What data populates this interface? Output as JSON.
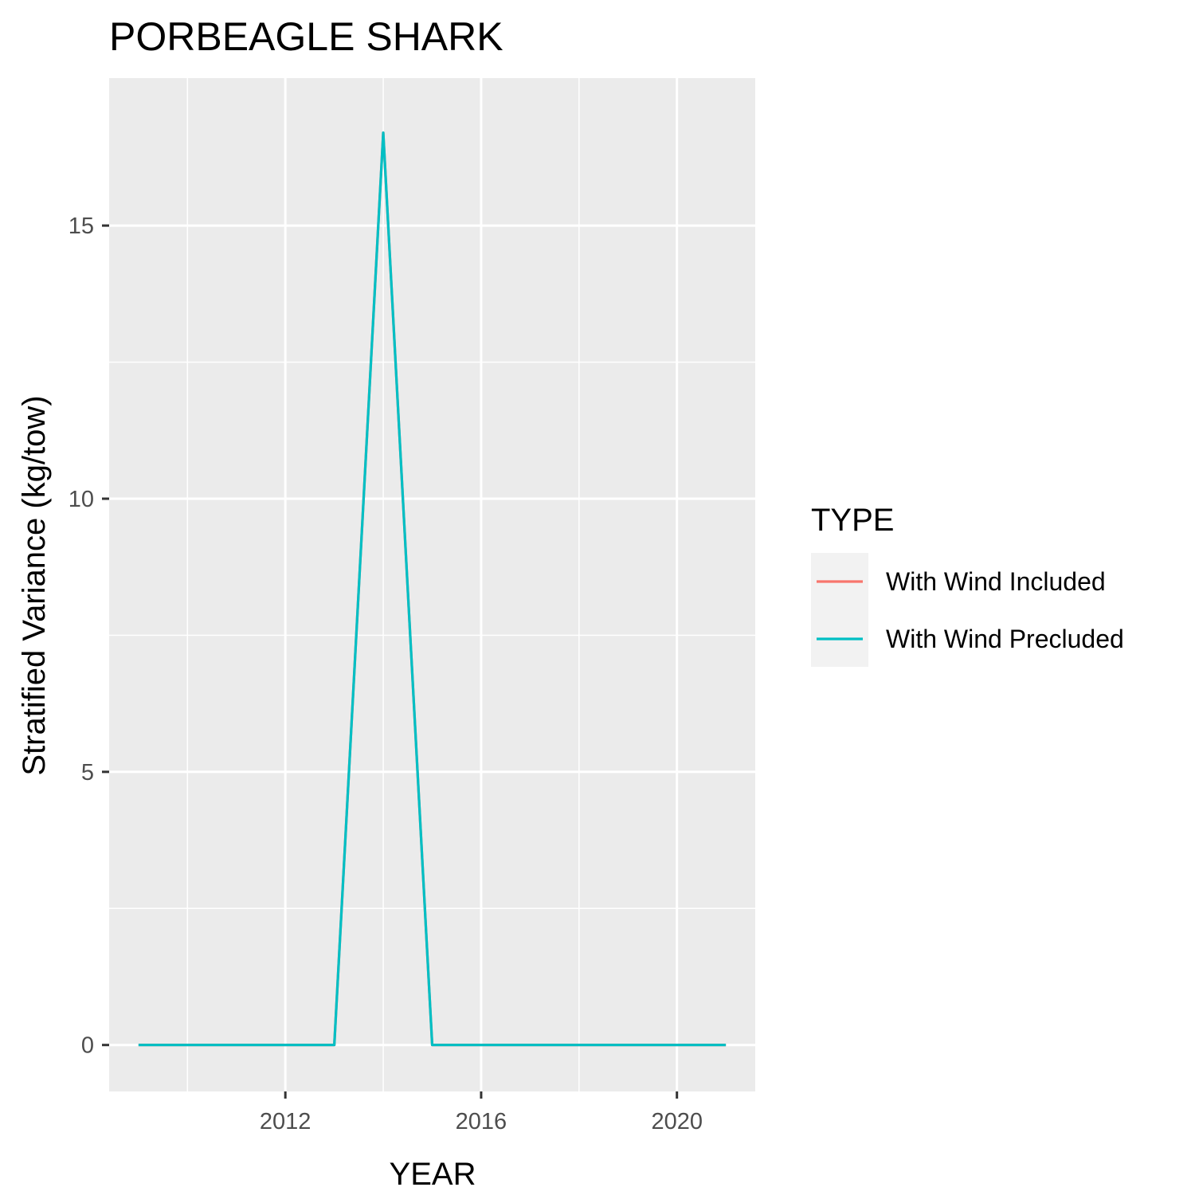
{
  "chart_data": {
    "type": "line",
    "title": "PORBEAGLE SHARK",
    "xlabel": "YEAR",
    "ylabel": "Stratified Variance (kg/tow)",
    "xlim": [
      2008.4,
      2021.6
    ],
    "ylim": [
      -0.85,
      17.7
    ],
    "x_ticks": [
      2012,
      2016,
      2020
    ],
    "x_minor_ticks": [
      2010,
      2014,
      2018
    ],
    "y_ticks": [
      0,
      5,
      10,
      15
    ],
    "y_minor_ticks": [
      2.5,
      7.5,
      12.5
    ],
    "grid": true,
    "legend": {
      "title": "TYPE",
      "position": "right"
    },
    "series": [
      {
        "name": "With Wind Included",
        "color": "#F8766D",
        "x": [
          2009,
          2010,
          2011,
          2012,
          2013,
          2014,
          2015,
          2016,
          2017,
          2018,
          2019,
          2020,
          2021
        ],
        "values": [
          0,
          0,
          0,
          0,
          0,
          16.7,
          0,
          0,
          0,
          0,
          0,
          0,
          0
        ]
      },
      {
        "name": "With Wind Precluded",
        "color": "#00BFC4",
        "x": [
          2009,
          2010,
          2011,
          2012,
          2013,
          2014,
          2015,
          2016,
          2017,
          2018,
          2019,
          2020,
          2021
        ],
        "values": [
          0,
          0,
          0,
          0,
          0,
          16.7,
          0,
          0,
          0,
          0,
          0,
          0,
          0
        ]
      }
    ]
  }
}
